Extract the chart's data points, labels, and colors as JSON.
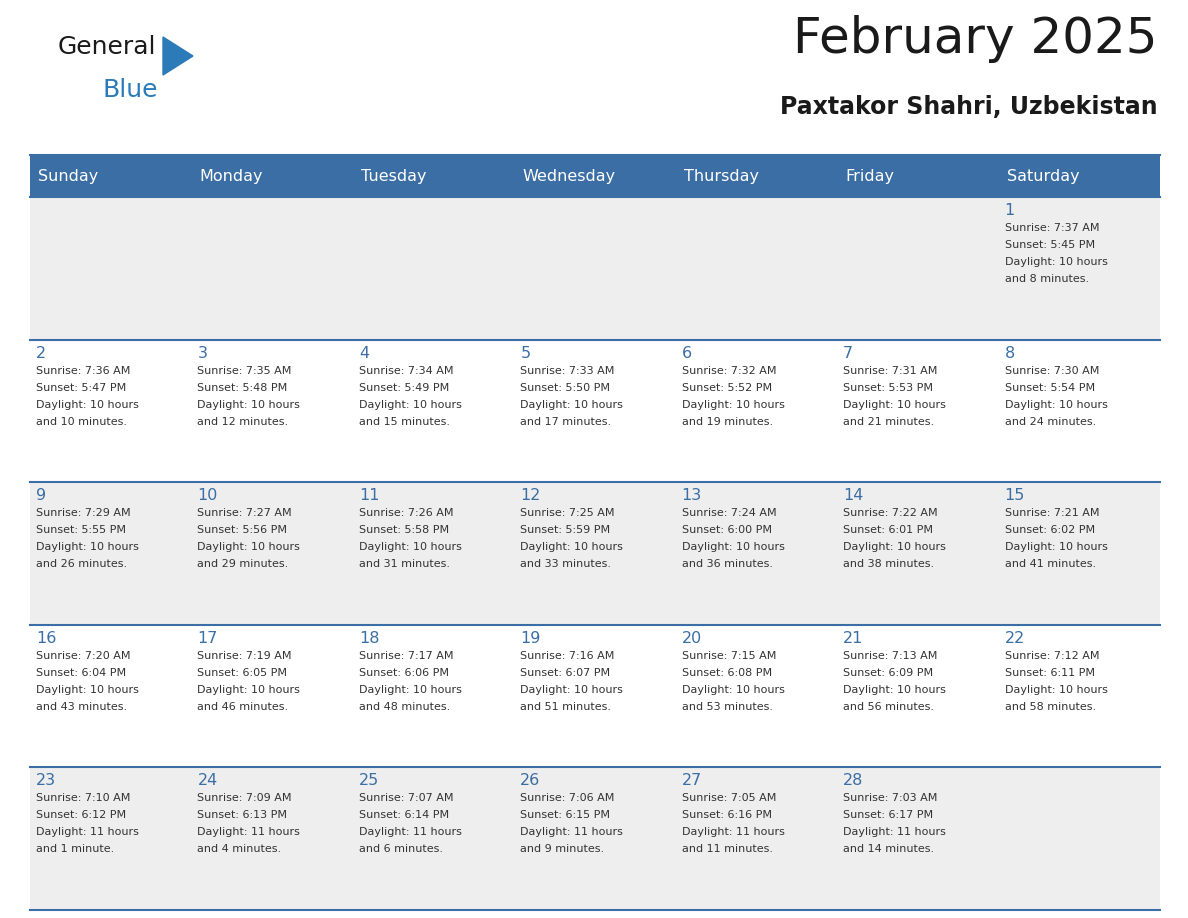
{
  "title": "February 2025",
  "subtitle": "Paxtakor Shahri, Uzbekistan",
  "header_bg_color": "#3a6ea5",
  "header_text_color": "#ffffff",
  "row1_bg": "#eeeeee",
  "row2_bg": "#ffffff",
  "day_number_color": "#3a6ea5",
  "text_color": "#333333",
  "line_color": "#3a6ea5",
  "days_of_week": [
    "Sunday",
    "Monday",
    "Tuesday",
    "Wednesday",
    "Thursday",
    "Friday",
    "Saturday"
  ],
  "weeks": [
    [
      {
        "day": null,
        "info": null
      },
      {
        "day": null,
        "info": null
      },
      {
        "day": null,
        "info": null
      },
      {
        "day": null,
        "info": null
      },
      {
        "day": null,
        "info": null
      },
      {
        "day": null,
        "info": null
      },
      {
        "day": 1,
        "info": "Sunrise: 7:37 AM\nSunset: 5:45 PM\nDaylight: 10 hours\nand 8 minutes."
      }
    ],
    [
      {
        "day": 2,
        "info": "Sunrise: 7:36 AM\nSunset: 5:47 PM\nDaylight: 10 hours\nand 10 minutes."
      },
      {
        "day": 3,
        "info": "Sunrise: 7:35 AM\nSunset: 5:48 PM\nDaylight: 10 hours\nand 12 minutes."
      },
      {
        "day": 4,
        "info": "Sunrise: 7:34 AM\nSunset: 5:49 PM\nDaylight: 10 hours\nand 15 minutes."
      },
      {
        "day": 5,
        "info": "Sunrise: 7:33 AM\nSunset: 5:50 PM\nDaylight: 10 hours\nand 17 minutes."
      },
      {
        "day": 6,
        "info": "Sunrise: 7:32 AM\nSunset: 5:52 PM\nDaylight: 10 hours\nand 19 minutes."
      },
      {
        "day": 7,
        "info": "Sunrise: 7:31 AM\nSunset: 5:53 PM\nDaylight: 10 hours\nand 21 minutes."
      },
      {
        "day": 8,
        "info": "Sunrise: 7:30 AM\nSunset: 5:54 PM\nDaylight: 10 hours\nand 24 minutes."
      }
    ],
    [
      {
        "day": 9,
        "info": "Sunrise: 7:29 AM\nSunset: 5:55 PM\nDaylight: 10 hours\nand 26 minutes."
      },
      {
        "day": 10,
        "info": "Sunrise: 7:27 AM\nSunset: 5:56 PM\nDaylight: 10 hours\nand 29 minutes."
      },
      {
        "day": 11,
        "info": "Sunrise: 7:26 AM\nSunset: 5:58 PM\nDaylight: 10 hours\nand 31 minutes."
      },
      {
        "day": 12,
        "info": "Sunrise: 7:25 AM\nSunset: 5:59 PM\nDaylight: 10 hours\nand 33 minutes."
      },
      {
        "day": 13,
        "info": "Sunrise: 7:24 AM\nSunset: 6:00 PM\nDaylight: 10 hours\nand 36 minutes."
      },
      {
        "day": 14,
        "info": "Sunrise: 7:22 AM\nSunset: 6:01 PM\nDaylight: 10 hours\nand 38 minutes."
      },
      {
        "day": 15,
        "info": "Sunrise: 7:21 AM\nSunset: 6:02 PM\nDaylight: 10 hours\nand 41 minutes."
      }
    ],
    [
      {
        "day": 16,
        "info": "Sunrise: 7:20 AM\nSunset: 6:04 PM\nDaylight: 10 hours\nand 43 minutes."
      },
      {
        "day": 17,
        "info": "Sunrise: 7:19 AM\nSunset: 6:05 PM\nDaylight: 10 hours\nand 46 minutes."
      },
      {
        "day": 18,
        "info": "Sunrise: 7:17 AM\nSunset: 6:06 PM\nDaylight: 10 hours\nand 48 minutes."
      },
      {
        "day": 19,
        "info": "Sunrise: 7:16 AM\nSunset: 6:07 PM\nDaylight: 10 hours\nand 51 minutes."
      },
      {
        "day": 20,
        "info": "Sunrise: 7:15 AM\nSunset: 6:08 PM\nDaylight: 10 hours\nand 53 minutes."
      },
      {
        "day": 21,
        "info": "Sunrise: 7:13 AM\nSunset: 6:09 PM\nDaylight: 10 hours\nand 56 minutes."
      },
      {
        "day": 22,
        "info": "Sunrise: 7:12 AM\nSunset: 6:11 PM\nDaylight: 10 hours\nand 58 minutes."
      }
    ],
    [
      {
        "day": 23,
        "info": "Sunrise: 7:10 AM\nSunset: 6:12 PM\nDaylight: 11 hours\nand 1 minute."
      },
      {
        "day": 24,
        "info": "Sunrise: 7:09 AM\nSunset: 6:13 PM\nDaylight: 11 hours\nand 4 minutes."
      },
      {
        "day": 25,
        "info": "Sunrise: 7:07 AM\nSunset: 6:14 PM\nDaylight: 11 hours\nand 6 minutes."
      },
      {
        "day": 26,
        "info": "Sunrise: 7:06 AM\nSunset: 6:15 PM\nDaylight: 11 hours\nand 9 minutes."
      },
      {
        "day": 27,
        "info": "Sunrise: 7:05 AM\nSunset: 6:16 PM\nDaylight: 11 hours\nand 11 minutes."
      },
      {
        "day": 28,
        "info": "Sunrise: 7:03 AM\nSunset: 6:17 PM\nDaylight: 11 hours\nand 14 minutes."
      },
      {
        "day": null,
        "info": null
      }
    ]
  ]
}
